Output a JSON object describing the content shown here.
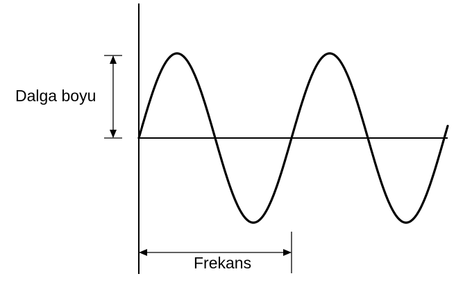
{
  "labels": {
    "amplitude": "Dalga boyu",
    "period": "Frekans"
  },
  "colors": {
    "stroke": "#000000",
    "background": "#ffffff"
  }
}
